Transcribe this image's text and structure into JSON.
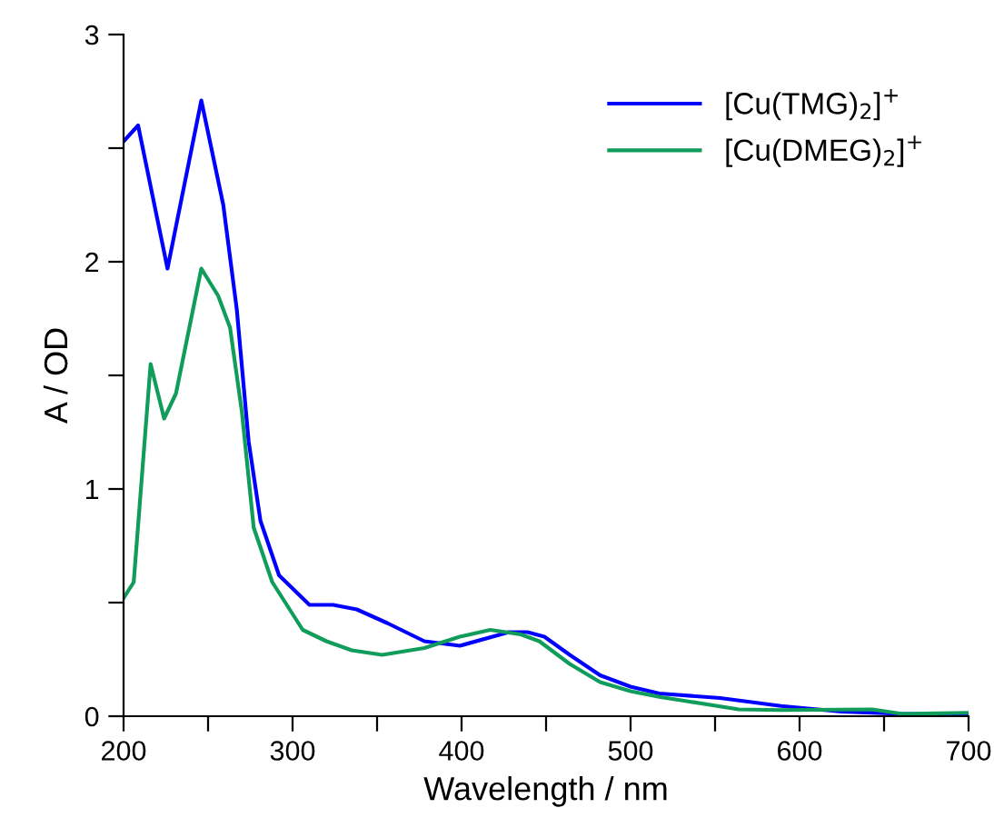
{
  "chart_data": {
    "type": "line",
    "xlabel": "Wavelength / nm",
    "ylabel": "A / OD",
    "xlim": [
      200,
      700
    ],
    "ylim": [
      0,
      3
    ],
    "xticks": [
      200,
      {
        "value": 250,
        "label": null
      },
      300,
      {
        "value": 350,
        "label": null
      },
      400,
      {
        "value": 450,
        "label": null
      },
      500,
      {
        "value": 550,
        "label": null
      },
      600,
      {
        "value": 650,
        "label": null
      },
      700
    ],
    "yticks": [
      0,
      {
        "value": 0.5,
        "label": null
      },
      1,
      {
        "value": 1.5,
        "label": null
      },
      2,
      {
        "value": 2.5,
        "label": null
      },
      3
    ],
    "grid": false,
    "legend": "top right",
    "marker": "none",
    "line_style": "solid",
    "series": [
      {
        "name": "[Cu(TMG)$_{2}$]$^{+}$",
        "color": "#0000ff",
        "x": [
          200,
          208.6,
          226,
          246,
          259,
          267,
          274,
          281,
          292,
          310,
          324,
          338,
          356,
          378,
          399,
          428,
          439,
          449,
          464,
          482,
          500,
          517,
          553,
          589,
          625,
          661,
          700
        ],
        "values": [
          2.53,
          2.6,
          1.97,
          2.71,
          2.25,
          1.79,
          1.21,
          0.86,
          0.62,
          0.49,
          0.49,
          0.47,
          0.41,
          0.33,
          0.31,
          0.37,
          0.37,
          0.35,
          0.27,
          0.18,
          0.13,
          0.1,
          0.08,
          0.045,
          0.02,
          0.01,
          0.01
        ]
      },
      {
        "name": "[Cu(DMEG)$_{2}$]$^{+}$",
        "color": "#109c5a",
        "x": [
          200,
          206,
          216,
          224,
          231,
          246,
          256,
          263,
          270,
          277,
          288,
          306,
          320,
          335,
          353,
          378,
          399,
          417,
          435,
          446,
          464,
          482,
          500,
          517,
          535,
          564,
          589,
          643,
          661,
          700
        ],
        "values": [
          0.52,
          0.59,
          1.55,
          1.31,
          1.42,
          1.97,
          1.85,
          1.71,
          1.34,
          0.83,
          0.59,
          0.38,
          0.33,
          0.29,
          0.27,
          0.3,
          0.35,
          0.38,
          0.36,
          0.33,
          0.23,
          0.15,
          0.11,
          0.085,
          0.064,
          0.03,
          0.027,
          0.03,
          0.01,
          0.015
        ]
      }
    ]
  }
}
